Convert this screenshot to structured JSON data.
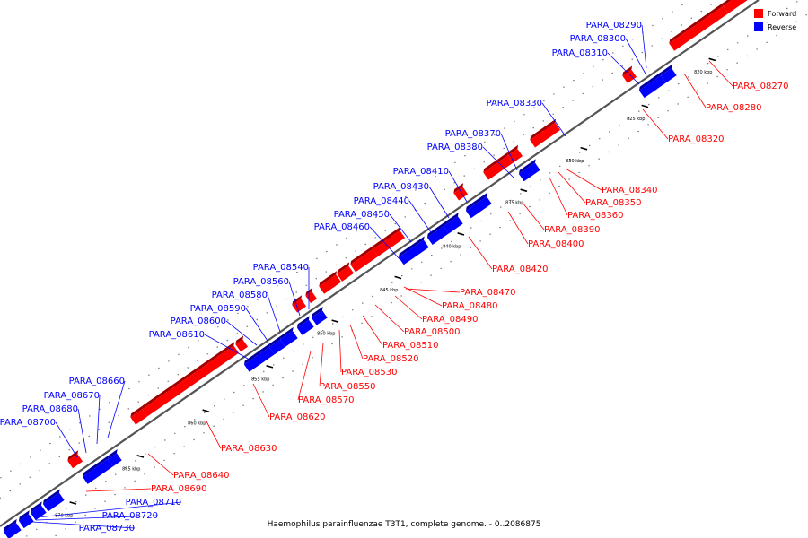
{
  "caption": "Haemophilus parainfluenzae T3T1, complete genome. - 0..2086875",
  "legend": [
    {
      "label": "Forward",
      "color": "#ff0000"
    },
    {
      "label": "Reverse",
      "color": "#0000ff"
    }
  ],
  "colors": {
    "forward": "#ff0000",
    "reverse": "#0000ff",
    "backbone": "#777777"
  },
  "ticks": [
    "820 kbp",
    "825 kbp",
    "830 kbp",
    "835 kbp",
    "840 kbp",
    "845 kbp",
    "850 kbp",
    "855 kbp",
    "860 kbp",
    "865 kbp",
    "870 kbp"
  ],
  "reverse_genes": [
    "PARA_08290",
    "PARA_08300",
    "PARA_08310",
    "PARA_08330",
    "PARA_08370",
    "PARA_08380",
    "PARA_08410",
    "PARA_08430",
    "PARA_08440",
    "PARA_08450",
    "PARA_08460",
    "PARA_08540",
    "PARA_08560",
    "PARA_08580",
    "PARA_08590",
    "PARA_08600",
    "PARA_08610",
    "PARA_08660",
    "PARA_08670",
    "PARA_08680",
    "PARA_08700",
    "PARA_08710",
    "PARA_08720",
    "PARA_08730"
  ],
  "forward_genes": [
    "PARA_08270",
    "PARA_08280",
    "PARA_08320",
    "PARA_08340",
    "PARA_08350",
    "PARA_08360",
    "PARA_08390",
    "PARA_08400",
    "PARA_08420",
    "PARA_08470",
    "PARA_08480",
    "PARA_08490",
    "PARA_08500",
    "PARA_08510",
    "PARA_08520",
    "PARA_08530",
    "PARA_08550",
    "PARA_08570",
    "PARA_08620",
    "PARA_08630",
    "PARA_08640",
    "PARA_08690"
  ]
}
